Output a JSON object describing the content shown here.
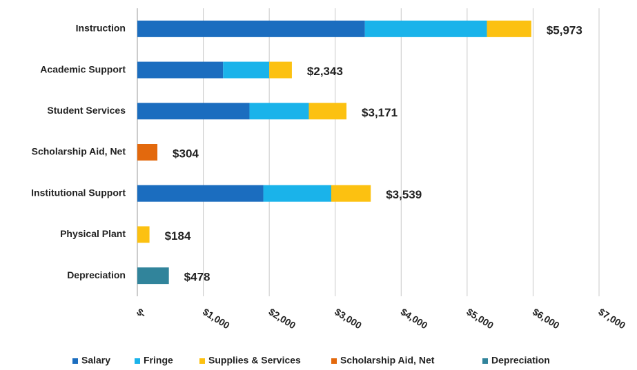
{
  "chart_data": {
    "type": "stacked-barh",
    "categories": [
      "Instruction",
      "Academic Support",
      "Student Services",
      "Scholarship Aid, Net",
      "Institutional Support",
      "Physical Plant",
      "Depreciation"
    ],
    "series": [
      {
        "name": "Salary",
        "color": "#1b6dbf",
        "values": [
          3450,
          1300,
          1700,
          null,
          1910,
          null,
          null
        ]
      },
      {
        "name": "Fringe",
        "color": "#1ab3ea",
        "values": [
          1850,
          700,
          900,
          null,
          1030,
          null,
          null
        ]
      },
      {
        "name": "Supplies & Services",
        "color": "#fcc111",
        "values": [
          673,
          343,
          571,
          null,
          599,
          184,
          null
        ]
      },
      {
        "name": "Scholarship Aid, Net",
        "color": "#e3690d",
        "values": [
          null,
          null,
          null,
          304,
          null,
          null,
          null
        ]
      },
      {
        "name": "Depreciation",
        "color": "#31849b",
        "values": [
          null,
          null,
          null,
          null,
          null,
          null,
          478
        ]
      }
    ],
    "totals": [
      5973,
      2343,
      3171,
      304,
      3539,
      184,
      478
    ],
    "total_labels": [
      "$5,973",
      "$2,343",
      "$3,171",
      "$304",
      "$3,539",
      "$184",
      "$478"
    ],
    "xlim": [
      0,
      7000
    ],
    "xticks": [
      {
        "value": 0,
        "label": "$-"
      },
      {
        "value": 1000,
        "label": "$1,000"
      },
      {
        "value": 2000,
        "label": "$2,000"
      },
      {
        "value": 3000,
        "label": "$3,000"
      },
      {
        "value": 4000,
        "label": "$4,000"
      },
      {
        "value": 5000,
        "label": "$5,000"
      },
      {
        "value": 6000,
        "label": "$6,000"
      },
      {
        "value": 7000,
        "label": "$7,000"
      }
    ],
    "grid": true,
    "legend": "bottom"
  }
}
